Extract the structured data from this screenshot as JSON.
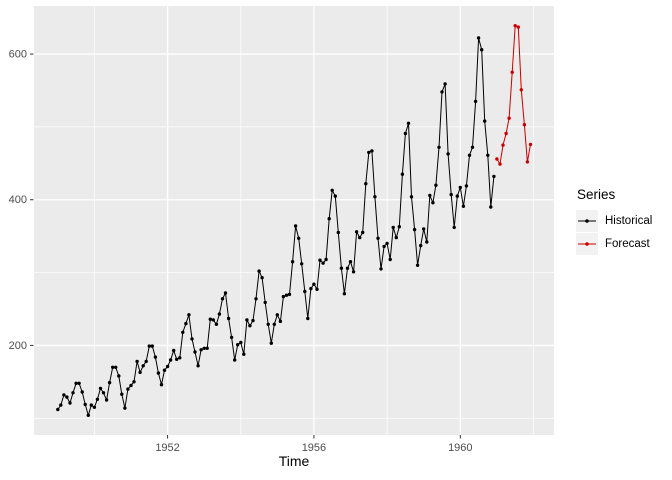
{
  "figure": {
    "legend": {
      "title": "Series",
      "entries": [
        {
          "label": "Historical",
          "color": "#000000"
        },
        {
          "label": "Forecast",
          "color": "#CC0000"
        }
      ]
    }
  },
  "colors": {
    "panel_bg": "#EBEBEB",
    "grid": "#FFFFFF",
    "axis_text": "#4D4D4D",
    "tick_mark": "#333333",
    "axis_title": "#000000",
    "legend_key_bg": "#F2F2F2"
  },
  "chart_data": {
    "type": "line",
    "title": "",
    "xlabel": "Time",
    "ylabel": "",
    "grid": true,
    "legend_position": "right",
    "xlim": [
      1948.35,
      1962.56
    ],
    "ylim": [
      77,
      666
    ],
    "x_ticks": [
      1952,
      1956,
      1960
    ],
    "x_minor_ticks": [
      1950,
      1954,
      1958,
      1962
    ],
    "y_ticks": [
      200,
      400,
      600
    ],
    "y_minor_ticks": [
      100,
      300,
      500
    ],
    "series": [
      {
        "name": "Historical",
        "color": "#000000",
        "start": 1949.0,
        "points_per_year": 12,
        "values": [
          112,
          118,
          132,
          129,
          121,
          135,
          148,
          148,
          136,
          119,
          104,
          118,
          115,
          126,
          141,
          135,
          125,
          149,
          170,
          170,
          158,
          133,
          114,
          140,
          145,
          150,
          178,
          163,
          172,
          178,
          199,
          199,
          184,
          162,
          146,
          166,
          171,
          180,
          193,
          181,
          183,
          218,
          230,
          242,
          209,
          191,
          172,
          194,
          196,
          196,
          236,
          235,
          229,
          243,
          264,
          272,
          237,
          211,
          180,
          201,
          204,
          188,
          235,
          227,
          234,
          264,
          302,
          293,
          259,
          229,
          203,
          229,
          242,
          233,
          267,
          269,
          270,
          315,
          364,
          347,
          312,
          274,
          237,
          278,
          284,
          277,
          317,
          313,
          318,
          374,
          413,
          405,
          355,
          306,
          271,
          306,
          315,
          301,
          356,
          348,
          355,
          422,
          465,
          467,
          404,
          347,
          305,
          336,
          340,
          318,
          362,
          348,
          363,
          435,
          491,
          505,
          404,
          359,
          310,
          337,
          360,
          342,
          406,
          396,
          420,
          472,
          548,
          559,
          463,
          407,
          362,
          405,
          417,
          391,
          419,
          461,
          472,
          535,
          622,
          606,
          508,
          461,
          390,
          432
        ]
      },
      {
        "name": "Forecast",
        "color": "#CC0000",
        "start": 1961.0,
        "points_per_year": 12,
        "values": [
          456,
          449,
          475,
          491,
          512,
          575,
          639,
          637,
          551,
          503,
          452,
          476
        ]
      }
    ]
  }
}
